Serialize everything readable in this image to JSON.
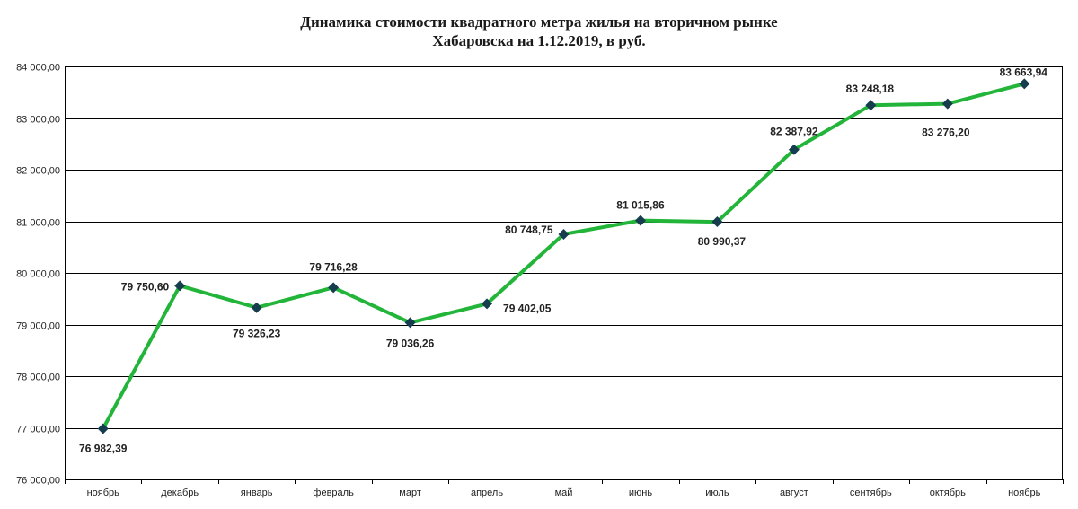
{
  "chart_data": {
    "type": "line",
    "title_line1": "Динамика стоимости квадратного метра жилья на вторичном рынке",
    "title_line2": "Хабаровска на 1.12.2019, в руб.",
    "xlabel": "",
    "ylabel": "",
    "ylim": [
      76000,
      84000
    ],
    "yticks": [
      "76 000,00",
      "77 000,00",
      "78 000,00",
      "79 000,00",
      "80 000,00",
      "81 000,00",
      "82 000,00",
      "83 000,00",
      "84 000,00"
    ],
    "categories": [
      "ноябрь",
      "декабрь",
      "январь",
      "февраль",
      "март",
      "апрель",
      "май",
      "июнь",
      "июль",
      "август",
      "сентябрь",
      "октябрь",
      "ноябрь"
    ],
    "series": [
      {
        "values": [
          76982.39,
          79750.6,
          79326.23,
          79716.28,
          79036.26,
          79402.05,
          80748.75,
          81015.86,
          80990.37,
          82387.92,
          83248.18,
          83276.2,
          83663.94
        ],
        "labels": [
          "76 982,39",
          "79 750,60",
          "79 326,23",
          "79 716,28",
          "79 036,26",
          "79 402,05",
          "80 748,75",
          "81 015,86",
          "80 990,37",
          "82 387,92",
          "83 248,18",
          "83 276,20",
          "83 663,94"
        ]
      }
    ],
    "grid": true,
    "legend": "none",
    "colors": {
      "line": "#22b53a",
      "marker": "#163d4e",
      "grid": "#000000"
    }
  }
}
